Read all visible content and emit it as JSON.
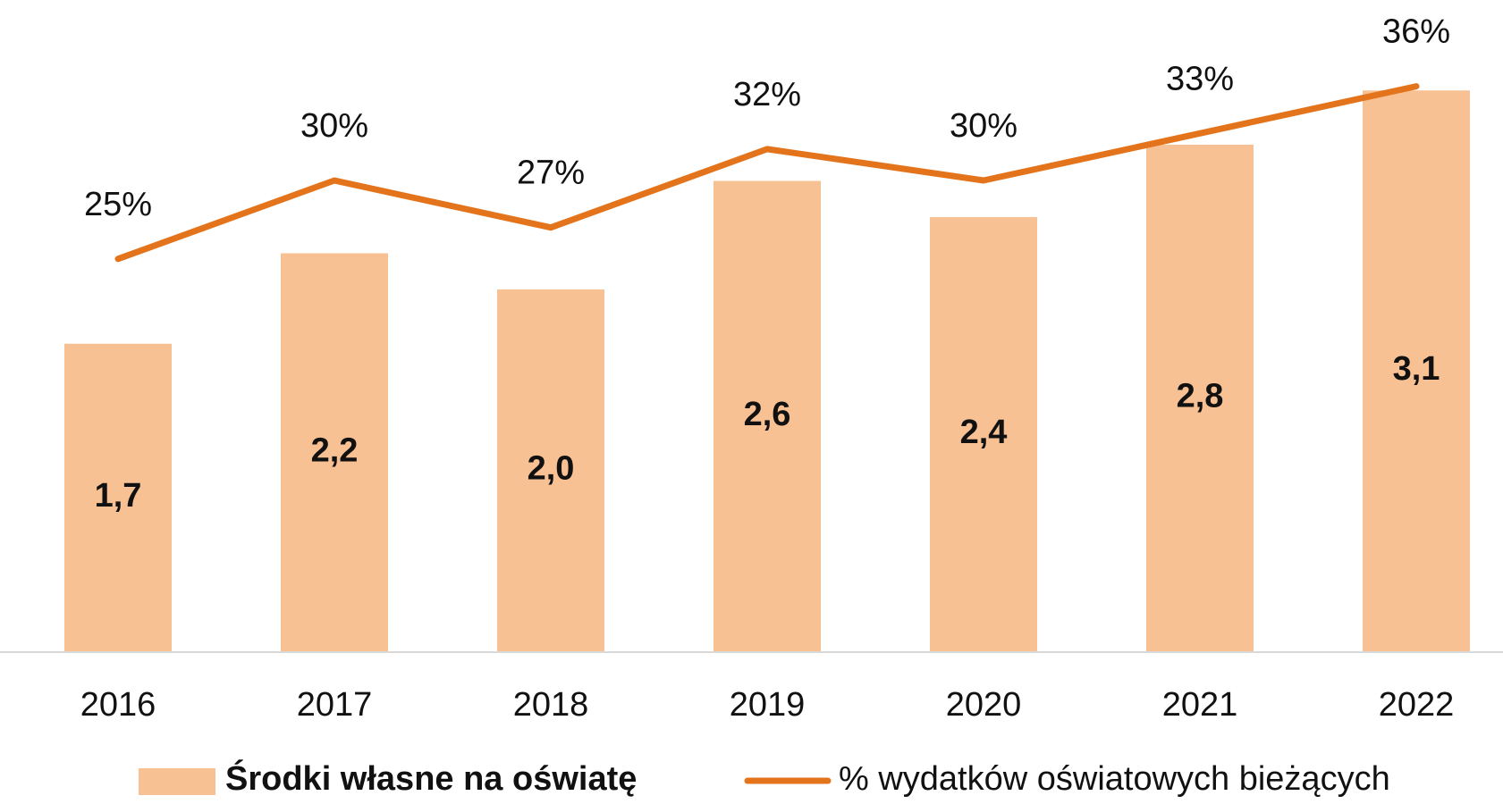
{
  "chart_data": {
    "type": "bar_line",
    "categories": [
      "2016",
      "2017",
      "2018",
      "2019",
      "2020",
      "2021",
      "2022"
    ],
    "series": [
      {
        "name": "Środki własne na oświatę",
        "type": "bar",
        "color": "#f8c193",
        "values": [
          1.7,
          2.2,
          2.0,
          2.6,
          2.4,
          2.8,
          3.1
        ],
        "value_labels": [
          "1,7",
          "2,2",
          "2,0",
          "2,6",
          "2,4",
          "2,8",
          "3,1"
        ]
      },
      {
        "name": "% wydatków oświatowych bieżących",
        "type": "line",
        "axis": "y2",
        "color": "#e4741c",
        "values": [
          25,
          30,
          27,
          32,
          30,
          33,
          36
        ],
        "value_labels": [
          "25%",
          "30%",
          "27%",
          "32%",
          "30%",
          "33%",
          "36%"
        ]
      }
    ],
    "ylim": [
      0,
      3.6
    ],
    "y2lim": [
      0,
      41.5
    ],
    "grid": false
  }
}
